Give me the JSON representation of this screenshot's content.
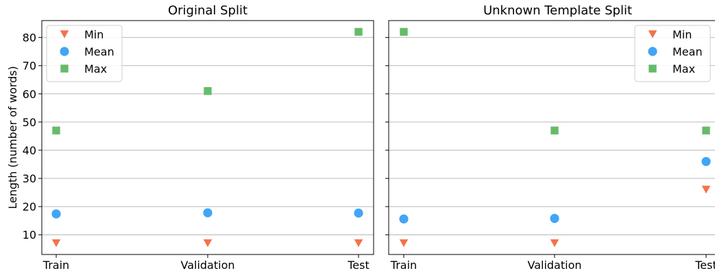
{
  "figure": {
    "shared_ylabel": "Length (number of words)"
  },
  "chart_data": [
    {
      "type": "scatter",
      "title": "Original Split",
      "xlabel": "",
      "ylabel": "Length (number of words)",
      "categories": [
        "Train",
        "Validation",
        "Test"
      ],
      "ylim": [
        3,
        86
      ],
      "yticks": [
        10,
        20,
        30,
        40,
        50,
        60,
        70,
        80
      ],
      "grid": "horizontal",
      "legend_position": "top-left",
      "series": [
        {
          "name": "Min",
          "marker": "triangle-down",
          "color": "#f4734b",
          "values": [
            7,
            7,
            7
          ]
        },
        {
          "name": "Mean",
          "marker": "circle",
          "color": "#42a5f5",
          "values": [
            17.4,
            17.8,
            17.7
          ]
        },
        {
          "name": "Max",
          "marker": "square",
          "color": "#66bb6a",
          "values": [
            47,
            61,
            82
          ]
        }
      ]
    },
    {
      "type": "scatter",
      "title": "Unknown Template Split",
      "xlabel": "",
      "ylabel": "",
      "categories": [
        "Train",
        "Validation",
        "Test"
      ],
      "ylim": [
        3,
        86
      ],
      "yticks": [
        10,
        20,
        30,
        40,
        50,
        60,
        70,
        80
      ],
      "grid": "horizontal",
      "legend_position": "top-right",
      "series": [
        {
          "name": "Min",
          "marker": "triangle-down",
          "color": "#f4734b",
          "values": [
            7,
            7,
            26
          ]
        },
        {
          "name": "Mean",
          "marker": "circle",
          "color": "#42a5f5",
          "values": [
            15.6,
            15.8,
            36
          ]
        },
        {
          "name": "Max",
          "marker": "square",
          "color": "#66bb6a",
          "values": [
            82,
            47,
            47
          ]
        }
      ]
    }
  ]
}
